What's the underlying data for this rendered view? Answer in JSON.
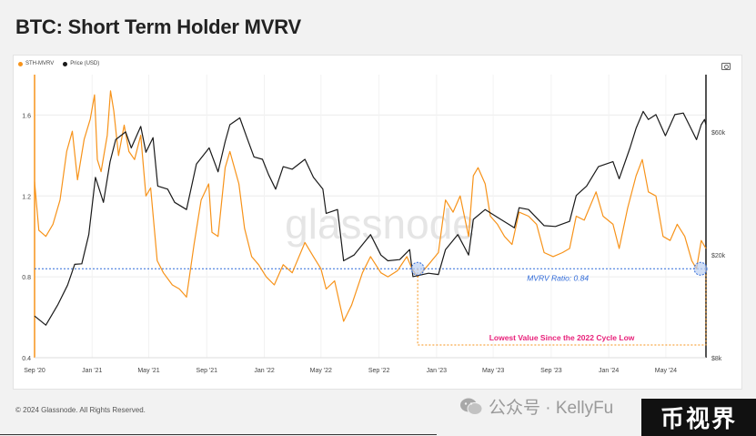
{
  "title": "BTC: Short Term Holder MVRV",
  "legend": [
    {
      "name": "STH-MVRV",
      "color": "#f7931a"
    },
    {
      "name": "Price (USD)",
      "color": "#1a1a1a"
    }
  ],
  "footer": "© 2024 Glassnode. All Rights Reserved.",
  "watermark": "glassnode",
  "social_watermark": "公众号 · KellyFu",
  "brand_badge": "币视界",
  "chart_data": {
    "type": "line",
    "title": "BTC: Short Term Holder MVRV",
    "x_range": [
      "2020-09-01",
      "2024-07-25"
    ],
    "x_ticks": [
      "Sep '20",
      "Jan '21",
      "May '21",
      "Sep '21",
      "Jan '22",
      "May '22",
      "Sep '22",
      "Jan '23",
      "May '23",
      "Sep '23",
      "Jan '24",
      "May '24"
    ],
    "y_left": {
      "label": "STH-MVRV",
      "ticks": [
        "0.4",
        "0.8",
        "1.2",
        "1.6"
      ],
      "range": [
        0.4,
        1.8
      ]
    },
    "y_right": {
      "label": "Price (USD)",
      "scale": "log",
      "ticks": [
        "$8k",
        "$20k",
        "$60k"
      ],
      "range": [
        8000,
        100000
      ]
    },
    "grid": true,
    "legend_position": "top-left",
    "series": [
      {
        "name": "STH-MVRV",
        "axis": "left",
        "color": "#f7931a",
        "points": [
          [
            "2020-09-01",
            1.27
          ],
          [
            "2020-09-10",
            1.03
          ],
          [
            "2020-09-25",
            1.0
          ],
          [
            "2020-10-10",
            1.06
          ],
          [
            "2020-10-25",
            1.18
          ],
          [
            "2020-11-08",
            1.42
          ],
          [
            "2020-11-20",
            1.52
          ],
          [
            "2020-12-01",
            1.28
          ],
          [
            "2020-12-15",
            1.48
          ],
          [
            "2020-12-28",
            1.58
          ],
          [
            "2021-01-06",
            1.7
          ],
          [
            "2021-01-12",
            1.38
          ],
          [
            "2021-01-20",
            1.32
          ],
          [
            "2021-02-02",
            1.5
          ],
          [
            "2021-02-09",
            1.72
          ],
          [
            "2021-02-16",
            1.62
          ],
          [
            "2021-02-26",
            1.4
          ],
          [
            "2021-03-10",
            1.55
          ],
          [
            "2021-03-20",
            1.42
          ],
          [
            "2021-04-01",
            1.38
          ],
          [
            "2021-04-14",
            1.5
          ],
          [
            "2021-04-25",
            1.2
          ],
          [
            "2021-05-05",
            1.24
          ],
          [
            "2021-05-19",
            0.88
          ],
          [
            "2021-06-01",
            0.82
          ],
          [
            "2021-06-20",
            0.76
          ],
          [
            "2021-07-05",
            0.74
          ],
          [
            "2021-07-20",
            0.7
          ],
          [
            "2021-08-05",
            0.96
          ],
          [
            "2021-08-20",
            1.18
          ],
          [
            "2021-09-05",
            1.26
          ],
          [
            "2021-09-12",
            1.02
          ],
          [
            "2021-09-25",
            1.0
          ],
          [
            "2021-10-10",
            1.34
          ],
          [
            "2021-10-20",
            1.42
          ],
          [
            "2021-11-08",
            1.26
          ],
          [
            "2021-11-20",
            1.04
          ],
          [
            "2021-12-05",
            0.9
          ],
          [
            "2021-12-20",
            0.86
          ],
          [
            "2022-01-05",
            0.8
          ],
          [
            "2022-01-22",
            0.76
          ],
          [
            "2022-02-10",
            0.86
          ],
          [
            "2022-03-01",
            0.82
          ],
          [
            "2022-03-28",
            0.97
          ],
          [
            "2022-04-15",
            0.9
          ],
          [
            "2022-05-01",
            0.84
          ],
          [
            "2022-05-12",
            0.74
          ],
          [
            "2022-05-30",
            0.78
          ],
          [
            "2022-06-18",
            0.58
          ],
          [
            "2022-07-05",
            0.66
          ],
          [
            "2022-07-28",
            0.82
          ],
          [
            "2022-08-14",
            0.9
          ],
          [
            "2022-09-05",
            0.82
          ],
          [
            "2022-09-20",
            0.8
          ],
          [
            "2022-10-10",
            0.83
          ],
          [
            "2022-10-30",
            0.9
          ],
          [
            "2022-11-10",
            0.84
          ],
          [
            "2022-11-22",
            0.8
          ],
          [
            "2022-12-15",
            0.86
          ],
          [
            "2023-01-05",
            0.92
          ],
          [
            "2023-01-20",
            1.18
          ],
          [
            "2023-02-05",
            1.12
          ],
          [
            "2023-02-20",
            1.2
          ],
          [
            "2023-03-10",
            1.0
          ],
          [
            "2023-03-20",
            1.3
          ],
          [
            "2023-03-30",
            1.34
          ],
          [
            "2023-04-14",
            1.26
          ],
          [
            "2023-04-25",
            1.1
          ],
          [
            "2023-05-10",
            1.06
          ],
          [
            "2023-05-25",
            1.0
          ],
          [
            "2023-06-10",
            0.96
          ],
          [
            "2023-06-25",
            1.12
          ],
          [
            "2023-07-15",
            1.1
          ],
          [
            "2023-08-01",
            1.06
          ],
          [
            "2023-08-17",
            0.92
          ],
          [
            "2023-09-05",
            0.9
          ],
          [
            "2023-09-25",
            0.92
          ],
          [
            "2023-10-10",
            0.94
          ],
          [
            "2023-10-24",
            1.1
          ],
          [
            "2023-11-10",
            1.08
          ],
          [
            "2023-12-05",
            1.22
          ],
          [
            "2023-12-20",
            1.1
          ],
          [
            "2024-01-10",
            1.06
          ],
          [
            "2024-01-23",
            0.94
          ],
          [
            "2024-02-10",
            1.14
          ],
          [
            "2024-02-28",
            1.3
          ],
          [
            "2024-03-12",
            1.38
          ],
          [
            "2024-03-25",
            1.22
          ],
          [
            "2024-04-10",
            1.2
          ],
          [
            "2024-04-25",
            1.0
          ],
          [
            "2024-05-10",
            0.98
          ],
          [
            "2024-05-25",
            1.06
          ],
          [
            "2024-06-10",
            1.0
          ],
          [
            "2024-06-25",
            0.88
          ],
          [
            "2024-07-05",
            0.84
          ],
          [
            "2024-07-15",
            0.98
          ],
          [
            "2024-07-25",
            0.94
          ]
        ]
      },
      {
        "name": "Price (USD)",
        "axis": "right",
        "color": "#1a1a1a",
        "points": [
          [
            "2020-09-01",
            11600
          ],
          [
            "2020-09-25",
            10700
          ],
          [
            "2020-10-20",
            12800
          ],
          [
            "2020-11-10",
            15300
          ],
          [
            "2020-11-25",
            18400
          ],
          [
            "2020-12-10",
            18500
          ],
          [
            "2020-12-25",
            24000
          ],
          [
            "2021-01-08",
            40000
          ],
          [
            "2021-01-25",
            32000
          ],
          [
            "2021-02-08",
            46000
          ],
          [
            "2021-02-20",
            56000
          ],
          [
            "2021-03-13",
            60000
          ],
          [
            "2021-03-25",
            52000
          ],
          [
            "2021-04-14",
            63000
          ],
          [
            "2021-04-25",
            50000
          ],
          [
            "2021-05-10",
            57000
          ],
          [
            "2021-05-20",
            37000
          ],
          [
            "2021-06-10",
            36000
          ],
          [
            "2021-06-25",
            32000
          ],
          [
            "2021-07-20",
            30000
          ],
          [
            "2021-08-10",
            45000
          ],
          [
            "2021-09-06",
            52000
          ],
          [
            "2021-09-25",
            42000
          ],
          [
            "2021-10-10",
            55000
          ],
          [
            "2021-10-20",
            64000
          ],
          [
            "2021-11-10",
            68000
          ],
          [
            "2021-11-25",
            57000
          ],
          [
            "2021-12-10",
            48000
          ],
          [
            "2021-12-28",
            47000
          ],
          [
            "2022-01-10",
            41000
          ],
          [
            "2022-01-25",
            36000
          ],
          [
            "2022-02-10",
            44000
          ],
          [
            "2022-03-01",
            43000
          ],
          [
            "2022-03-28",
            47000
          ],
          [
            "2022-04-15",
            40000
          ],
          [
            "2022-05-05",
            36000
          ],
          [
            "2022-05-12",
            29000
          ],
          [
            "2022-06-05",
            30000
          ],
          [
            "2022-06-18",
            19000
          ],
          [
            "2022-07-10",
            20000
          ],
          [
            "2022-08-14",
            24000
          ],
          [
            "2022-09-05",
            20000
          ],
          [
            "2022-09-20",
            19000
          ],
          [
            "2022-10-15",
            19200
          ],
          [
            "2022-11-05",
            21000
          ],
          [
            "2022-11-12",
            16500
          ],
          [
            "2022-12-15",
            17000
          ],
          [
            "2023-01-05",
            16800
          ],
          [
            "2023-01-20",
            21000
          ],
          [
            "2023-02-15",
            24000
          ],
          [
            "2023-03-10",
            20000
          ],
          [
            "2023-03-20",
            27500
          ],
          [
            "2023-04-14",
            30000
          ],
          [
            "2023-05-10",
            28000
          ],
          [
            "2023-06-15",
            25500
          ],
          [
            "2023-06-25",
            30500
          ],
          [
            "2023-07-15",
            30000
          ],
          [
            "2023-08-17",
            26000
          ],
          [
            "2023-09-10",
            25800
          ],
          [
            "2023-10-10",
            27000
          ],
          [
            "2023-10-24",
            34000
          ],
          [
            "2023-11-15",
            37000
          ],
          [
            "2023-12-10",
            44000
          ],
          [
            "2024-01-10",
            46000
          ],
          [
            "2024-01-23",
            39500
          ],
          [
            "2024-02-15",
            52000
          ],
          [
            "2024-02-28",
            62000
          ],
          [
            "2024-03-14",
            72000
          ],
          [
            "2024-03-25",
            67000
          ],
          [
            "2024-04-10",
            70000
          ],
          [
            "2024-04-30",
            58000
          ],
          [
            "2024-05-20",
            70000
          ],
          [
            "2024-06-07",
            71000
          ],
          [
            "2024-06-25",
            61000
          ],
          [
            "2024-07-05",
            56000
          ],
          [
            "2024-07-15",
            64000
          ],
          [
            "2024-07-22",
            67000
          ],
          [
            "2024-07-25",
            64000
          ]
        ]
      }
    ],
    "annotations": [
      {
        "type": "hline",
        "axis": "left",
        "y": 0.84,
        "label": "MVRV Ratio: 0.84",
        "color": "#2f6ad9"
      },
      {
        "type": "box",
        "x_start": "2022-11-22",
        "x_end": "2024-07-25",
        "label": "Lowest Value Since the 2022 Cycle Low",
        "color": "#e8207a"
      }
    ]
  }
}
